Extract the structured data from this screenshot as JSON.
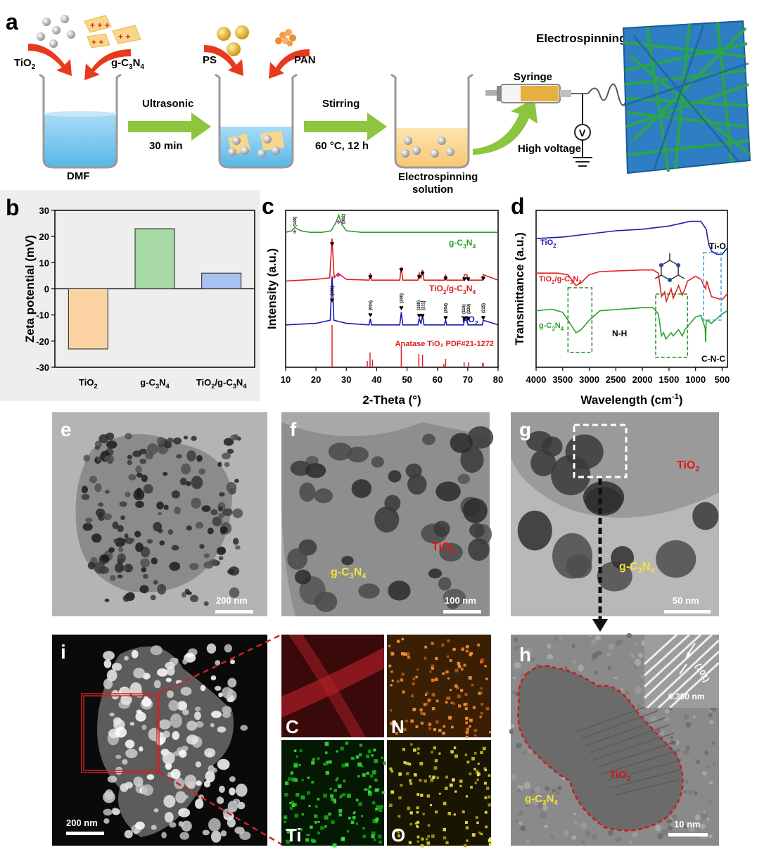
{
  "panels": {
    "a": {
      "letter": "a",
      "tio2": "TiO",
      "gcn_a": "g-C",
      "ps": "PS",
      "pan": "PAN",
      "dmf": "DMF",
      "ultrasonic": "Ultrasonic",
      "time": "30 min",
      "stirring": "Stirring",
      "stir_cond": "60 °C, 12 h",
      "solution1": "Electrospinning",
      "solution2": "solution",
      "syringe": "Syringe",
      "high_voltage": "High voltage",
      "voltmeter": "V",
      "title": "Electrospinning"
    },
    "b": {
      "letter": "b"
    },
    "c": {
      "letter": "c"
    },
    "d": {
      "letter": "d"
    },
    "e": {
      "letter": "e",
      "scale": "200 nm"
    },
    "f": {
      "letter": "f",
      "scale": "100 nm",
      "label_tio2": "TiO",
      "label_gcn": "g-C"
    },
    "g": {
      "letter": "g",
      "scale": "50 nm",
      "label_tio2": "TiO",
      "label_gcn": "g-C"
    },
    "h": {
      "letter": "h",
      "scale": "10 nm",
      "label_tio2": "TiO",
      "label_gcn": "g-C",
      "spacing": "0.350 nm",
      "plane": "(101)"
    },
    "i": {
      "letter": "i",
      "scale": "200 nm",
      "maps": [
        "C",
        "N",
        "Ti",
        "O"
      ]
    }
  },
  "chart_data": [
    {
      "panel": "b",
      "type": "bar",
      "categories": [
        "TiO2",
        "g-C3N4",
        "TiO2/g-C3N4"
      ],
      "values": [
        -23,
        23,
        6
      ],
      "colors": [
        "#fbd3a2",
        "#a6d9a3",
        "#a7c2f2"
      ],
      "ylabel": "Zeta potential (mV)",
      "ylim": [
        -30,
        30
      ],
      "yticks": [
        -30,
        -20,
        -10,
        0,
        10,
        20,
        30
      ]
    },
    {
      "panel": "c",
      "type": "line",
      "xlabel": "2-Theta (°)",
      "ylabel": "Intensity (a.u.)",
      "xlim": [
        10,
        80
      ],
      "xticks": [
        10,
        20,
        30,
        40,
        50,
        60,
        70,
        80
      ],
      "series": [
        {
          "name": "g-C3N4",
          "color": "#2ba12b",
          "x": [
            10,
            12,
            13,
            15,
            18,
            22,
            25,
            26.5,
            27.5,
            28.5,
            30,
            35,
            45,
            60,
            80
          ],
          "y": [
            0.86,
            0.87,
            0.89,
            0.87,
            0.86,
            0.86,
            0.87,
            0.92,
            0.97,
            0.91,
            0.87,
            0.86,
            0.86,
            0.86,
            0.86
          ]
        },
        {
          "name": "TiO2/g-C3N4",
          "color": "#e02020",
          "x": [
            10,
            20,
            24.5,
            25.3,
            26,
            27.3,
            30,
            37.5,
            37.9,
            38.3,
            47.6,
            48.1,
            48.6,
            53.6,
            54,
            54.6,
            55.1,
            55.6,
            62.3,
            62.7,
            63.1,
            68.6,
            68.9,
            69.7,
            70.1,
            74.8,
            75.1,
            80
          ],
          "y": [
            0.55,
            0.56,
            0.57,
            0.82,
            0.57,
            0.6,
            0.56,
            0.555,
            0.6,
            0.555,
            0.555,
            0.64,
            0.555,
            0.555,
            0.6,
            0.57,
            0.62,
            0.555,
            0.555,
            0.59,
            0.555,
            0.555,
            0.59,
            0.59,
            0.555,
            0.555,
            0.59,
            0.555
          ]
        },
        {
          "name": "TiO2",
          "color": "#1a1ab0",
          "x": [
            10,
            20,
            24.7,
            25.3,
            25.9,
            30,
            37.5,
            37.9,
            38.3,
            47.6,
            48.1,
            48.6,
            53.6,
            54,
            54.6,
            55.1,
            55.6,
            62.3,
            62.7,
            63.1,
            68.6,
            68.9,
            69.7,
            70.1,
            74.8,
            75.1,
            80
          ],
          "y": [
            0.27,
            0.28,
            0.3,
            0.58,
            0.3,
            0.28,
            0.27,
            0.31,
            0.27,
            0.27,
            0.35,
            0.27,
            0.27,
            0.31,
            0.28,
            0.33,
            0.27,
            0.27,
            0.3,
            0.27,
            0.27,
            0.3,
            0.3,
            0.27,
            0.27,
            0.3,
            0.27
          ]
        }
      ],
      "reference": {
        "name": "Anatase TiO2 PDF#21-1272",
        "color": "#e02020",
        "x": [
          25.3,
          36.9,
          37.8,
          38.6,
          48.1,
          53.9,
          55.1,
          62.1,
          62.7,
          68.8,
          70.3,
          74.9,
          75.1
        ],
        "h": [
          1.0,
          0.15,
          0.35,
          0.18,
          0.5,
          0.32,
          0.3,
          0.08,
          0.2,
          0.12,
          0.12,
          0.1,
          0.1
        ]
      },
      "peak_labels": [
        "(100)",
        "(002)",
        "(101)",
        "(004)",
        "(200)",
        "(105)",
        "(211)",
        "(204)",
        "(116)",
        "(220)",
        "(215)"
      ]
    },
    {
      "panel": "d",
      "type": "line",
      "xlabel": "Wavelength (cm-1)",
      "ylabel": "Transmittance (a.u.)",
      "xlim": [
        4000,
        400
      ],
      "xticks": [
        4000,
        3500,
        3000,
        2500,
        2000,
        1500,
        1000,
        500
      ],
      "annotations": [
        "N-H",
        "Ti-O",
        "C-N-C"
      ],
      "series": [
        {
          "name": "TiO2",
          "color": "#1a1ab0",
          "x": [
            4000,
            3500,
            3000,
            2500,
            2000,
            1500,
            1100,
            900,
            800,
            750,
            700,
            600,
            500,
            450,
            400
          ],
          "y": [
            0.82,
            0.83,
            0.85,
            0.87,
            0.88,
            0.9,
            0.93,
            0.93,
            0.88,
            0.78,
            0.74,
            0.72,
            0.72,
            0.74,
            0.76
          ]
        },
        {
          "name": "TiO2/g-C3N4",
          "color": "#e02020",
          "x": [
            4000,
            3600,
            3400,
            3250,
            3150,
            3000,
            2800,
            2000,
            1800,
            1700,
            1640,
            1580,
            1550,
            1460,
            1420,
            1320,
            1250,
            1200,
            1150,
            1000,
            900,
            810,
            790,
            700,
            500,
            450,
            400
          ],
          "y": [
            0.6,
            0.6,
            0.59,
            0.52,
            0.54,
            0.59,
            0.61,
            0.62,
            0.62,
            0.6,
            0.45,
            0.48,
            0.42,
            0.5,
            0.44,
            0.52,
            0.46,
            0.5,
            0.55,
            0.58,
            0.56,
            0.5,
            0.55,
            0.45,
            0.43,
            0.45,
            0.47
          ]
        },
        {
          "name": "g-C3N4",
          "color": "#2ba12b",
          "x": [
            4000,
            3700,
            3500,
            3400,
            3250,
            3150,
            3000,
            2800,
            2000,
            1800,
            1700,
            1640,
            1600,
            1560,
            1460,
            1420,
            1320,
            1250,
            1200,
            1150,
            1000,
            900,
            820,
            810,
            800,
            700,
            600,
            500,
            400
          ],
          "y": [
            0.36,
            0.37,
            0.35,
            0.3,
            0.22,
            0.24,
            0.3,
            0.36,
            0.38,
            0.38,
            0.34,
            0.2,
            0.22,
            0.18,
            0.22,
            0.2,
            0.24,
            0.2,
            0.24,
            0.26,
            0.32,
            0.33,
            0.25,
            0.16,
            0.3,
            0.28,
            0.31,
            0.34,
            0.36
          ]
        }
      ]
    }
  ]
}
